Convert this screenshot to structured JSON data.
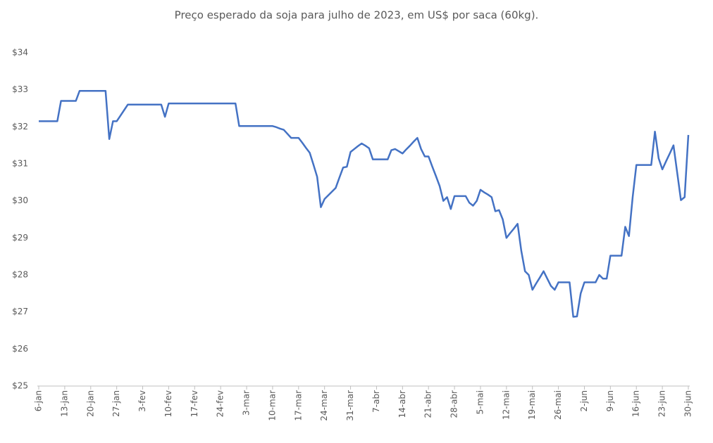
{
  "chart_data": {
    "type": "line",
    "title": "Preço esperado da soja para julho de 2023, em US$ por saca (60kg).",
    "categories": [
      "6-jan",
      null,
      null,
      null,
      null,
      null,
      null,
      "13-jan",
      null,
      null,
      null,
      null,
      null,
      null,
      "20-jan",
      null,
      null,
      null,
      null,
      null,
      null,
      "27-jan",
      null,
      null,
      null,
      null,
      null,
      null,
      "3-fev",
      null,
      null,
      null,
      null,
      null,
      null,
      "10-fev",
      null,
      null,
      null,
      null,
      null,
      null,
      "17-fev",
      null,
      null,
      null,
      null,
      null,
      null,
      "24-fev",
      null,
      null,
      null,
      null,
      null,
      null,
      "3-mar",
      null,
      null,
      null,
      null,
      null,
      null,
      "10-mar",
      null,
      null,
      null,
      null,
      null,
      null,
      "17-mar",
      null,
      null,
      null,
      null,
      null,
      null,
      "24-mar",
      null,
      null,
      null,
      null,
      null,
      null,
      "31-mar",
      null,
      null,
      null,
      null,
      null,
      null,
      "7-abr",
      null,
      null,
      null,
      null,
      null,
      null,
      "14-abr",
      null,
      null,
      null,
      null,
      null,
      null,
      "21-abr",
      null,
      null,
      null,
      null,
      null,
      null,
      "28-abr",
      null,
      null,
      null,
      null,
      null,
      null,
      "5-mai",
      null,
      null,
      null,
      null,
      null,
      null,
      "12-mai",
      null,
      null,
      null,
      null,
      null,
      null,
      "19-mai",
      null,
      null,
      null,
      null,
      null,
      null,
      "26-mai",
      null,
      null,
      null,
      null,
      null,
      null,
      "2-jun",
      null,
      null,
      null,
      null,
      null,
      null,
      "9-jun",
      null,
      null,
      null,
      null,
      null,
      null,
      "16-jun",
      null,
      null,
      null,
      null,
      null,
      null,
      "23-jun",
      null,
      null,
      null,
      null,
      null,
      null,
      "30-jun"
    ],
    "series": [
      {
        "name": "Preço",
        "color": "#4472c4",
        "values": [
          32.15,
          32.15,
          32.15,
          32.15,
          32.15,
          32.15,
          32.7,
          32.7,
          32.7,
          32.7,
          32.7,
          32.97,
          32.97,
          32.97,
          32.97,
          32.97,
          32.97,
          32.97,
          32.97,
          31.67,
          32.15,
          32.15,
          32.3,
          32.45,
          32.6,
          32.6,
          32.6,
          32.6,
          32.6,
          32.6,
          32.6,
          32.6,
          32.6,
          32.6,
          32.27,
          32.63,
          32.63,
          32.63,
          32.63,
          32.63,
          32.63,
          32.63,
          32.63,
          32.63,
          32.63,
          32.63,
          32.63,
          32.63,
          32.63,
          32.63,
          32.63,
          32.63,
          32.63,
          32.63,
          32.02,
          32.02,
          32.02,
          32.02,
          32.02,
          32.02,
          32.02,
          32.02,
          32.02,
          32.02,
          31.99,
          31.95,
          31.92,
          31.81,
          31.7,
          31.7,
          31.7,
          31.57,
          31.43,
          31.3,
          30.98,
          30.65,
          29.83,
          30.05,
          30.15,
          30.25,
          30.35,
          30.63,
          30.9,
          30.92,
          31.32,
          31.4,
          31.48,
          31.55,
          31.49,
          31.42,
          31.12,
          31.12,
          31.12,
          31.12,
          31.12,
          31.37,
          31.4,
          31.34,
          31.28,
          31.39,
          31.49,
          31.6,
          31.7,
          31.4,
          31.2,
          31.2,
          30.93,
          30.67,
          30.4,
          30.0,
          30.1,
          29.78,
          30.13,
          30.13,
          30.13,
          30.13,
          29.95,
          29.87,
          30.0,
          30.3,
          30.23,
          30.17,
          30.1,
          29.72,
          29.75,
          29.5,
          29.0,
          29.13,
          29.25,
          29.38,
          28.65,
          28.1,
          28.0,
          27.6,
          27.77,
          27.93,
          28.1,
          27.9,
          27.7,
          27.6,
          27.8,
          27.8,
          27.8,
          27.8,
          26.87,
          26.88,
          27.5,
          27.8,
          27.8,
          27.8,
          27.8,
          28.0,
          27.9,
          27.9,
          28.52,
          28.52,
          28.52,
          28.52,
          29.3,
          29.05,
          30.1,
          30.97,
          30.97,
          30.97,
          30.97,
          30.97,
          31.87,
          31.15,
          30.85,
          31.07,
          31.28,
          31.5,
          30.76,
          30.02,
          30.1,
          31.78
        ]
      }
    ],
    "ylim": [
      25,
      34
    ],
    "yticks": [
      {
        "value": 25,
        "label": "$25"
      },
      {
        "value": 26,
        "label": "$26"
      },
      {
        "value": 27,
        "label": "$27"
      },
      {
        "value": 28,
        "label": "$28"
      },
      {
        "value": 29,
        "label": "$29"
      },
      {
        "value": 30,
        "label": "$30"
      },
      {
        "value": 31,
        "label": "$31"
      },
      {
        "value": 32,
        "label": "$32"
      },
      {
        "value": 33,
        "label": "$33"
      },
      {
        "value": 34,
        "label": "$34"
      }
    ],
    "grid": false
  }
}
